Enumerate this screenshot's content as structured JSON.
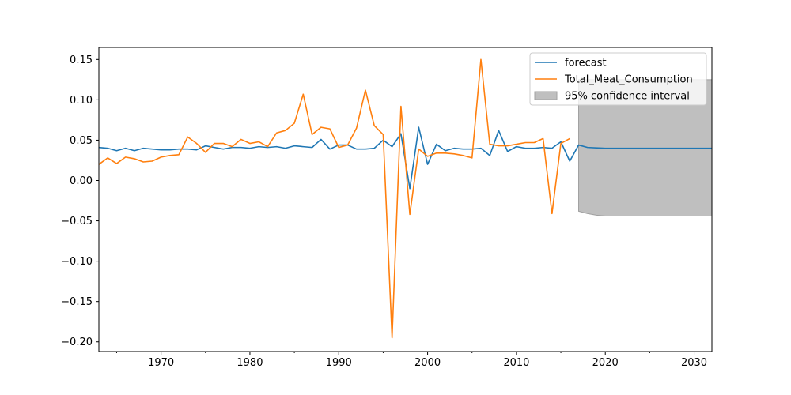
{
  "chart_data": {
    "type": "line",
    "title": "",
    "xlabel": "",
    "ylabel": "",
    "xlim": [
      1963,
      2032
    ],
    "ylim": [
      -0.212,
      0.165
    ],
    "grid": false,
    "legend_position": "top-right",
    "x_ticks": [
      1970,
      1980,
      1990,
      2000,
      2010,
      2020,
      2030
    ],
    "x_tick_labels": [
      "1970",
      "1980",
      "1990",
      "2000",
      "2010",
      "2020",
      "2030"
    ],
    "x_minor_ticks": [
      1965,
      1975,
      1985,
      1995,
      2005,
      2015,
      2025
    ],
    "y_ticks": [
      0.15,
      0.1,
      0.05,
      0.0,
      -0.05,
      -0.1,
      -0.15,
      -0.2
    ],
    "y_tick_labels": [
      "0.15",
      "0.10",
      "0.05",
      "0.00",
      "−0.05",
      "−0.10",
      "−0.15",
      "−0.20"
    ],
    "series": [
      {
        "name": "forecast",
        "color": "#1f77b4",
        "x": [
          1963,
          1964,
          1965,
          1966,
          1967,
          1968,
          1969,
          1970,
          1971,
          1972,
          1973,
          1974,
          1975,
          1976,
          1977,
          1978,
          1979,
          1980,
          1981,
          1982,
          1983,
          1984,
          1985,
          1986,
          1987,
          1988,
          1989,
          1990,
          1991,
          1992,
          1993,
          1994,
          1995,
          1996,
          1997,
          1998,
          1999,
          2000,
          2001,
          2002,
          2003,
          2004,
          2005,
          2006,
          2007,
          2008,
          2009,
          2010,
          2011,
          2012,
          2013,
          2014,
          2015,
          2016,
          2017,
          2018,
          2019,
          2020,
          2021,
          2022,
          2023,
          2024,
          2025,
          2026,
          2027,
          2028,
          2029,
          2030,
          2031,
          2032
        ],
        "values": [
          0.041,
          0.04,
          0.037,
          0.04,
          0.037,
          0.04,
          0.039,
          0.038,
          0.038,
          0.039,
          0.039,
          0.038,
          0.043,
          0.041,
          0.039,
          0.041,
          0.041,
          0.04,
          0.042,
          0.041,
          0.042,
          0.04,
          0.043,
          0.042,
          0.041,
          0.051,
          0.039,
          0.044,
          0.044,
          0.039,
          0.039,
          0.04,
          0.05,
          0.042,
          0.058,
          -0.01,
          0.066,
          0.02,
          0.045,
          0.037,
          0.04,
          0.039,
          0.039,
          0.04,
          0.031,
          0.062,
          0.036,
          0.042,
          0.04,
          0.04,
          0.041,
          0.04,
          0.048,
          0.024,
          0.044,
          0.041,
          0.0405,
          0.04,
          0.04,
          0.04,
          0.04,
          0.04,
          0.04,
          0.04,
          0.04,
          0.04,
          0.04,
          0.04,
          0.04,
          0.04
        ]
      },
      {
        "name": "Total_Meat_Consumption",
        "color": "#ff7f0e",
        "x": [
          1963,
          1964,
          1965,
          1966,
          1967,
          1968,
          1969,
          1970,
          1971,
          1972,
          1973,
          1974,
          1975,
          1976,
          1977,
          1978,
          1979,
          1980,
          1981,
          1982,
          1983,
          1984,
          1985,
          1986,
          1987,
          1988,
          1989,
          1990,
          1991,
          1992,
          1993,
          1994,
          1995,
          1996,
          1997,
          1998,
          1999,
          2000,
          2001,
          2002,
          2003,
          2004,
          2005,
          2006,
          2007,
          2008,
          2009,
          2010,
          2011,
          2012,
          2013,
          2014,
          2015,
          2016
        ],
        "values": [
          0.02,
          0.028,
          0.021,
          0.029,
          0.027,
          0.023,
          0.024,
          0.029,
          0.031,
          0.032,
          0.054,
          0.046,
          0.035,
          0.046,
          0.046,
          0.042,
          0.051,
          0.046,
          0.048,
          0.042,
          0.059,
          0.062,
          0.071,
          0.107,
          0.057,
          0.066,
          0.064,
          0.041,
          0.044,
          0.065,
          0.112,
          0.068,
          0.057,
          -0.195,
          0.092,
          -0.042,
          0.039,
          0.03,
          0.034,
          0.034,
          0.033,
          0.031,
          0.028,
          0.15,
          0.045,
          0.043,
          0.043,
          0.045,
          0.047,
          0.047,
          0.052,
          -0.041,
          0.046,
          0.052
        ]
      }
    ],
    "confidence_interval": {
      "name": "95% confidence interval",
      "color": "#bfbfbf",
      "x": [
        2017,
        2018,
        2019,
        2020,
        2021,
        2022,
        2023,
        2024,
        2025,
        2026,
        2027,
        2028,
        2029,
        2030,
        2031,
        2032
      ],
      "upper": [
        0.125,
        0.125,
        0.125,
        0.125,
        0.125,
        0.125,
        0.125,
        0.125,
        0.125,
        0.125,
        0.125,
        0.125,
        0.125,
        0.125,
        0.125,
        0.125
      ],
      "lower": [
        -0.038,
        -0.041,
        -0.043,
        -0.044,
        -0.044,
        -0.044,
        -0.044,
        -0.044,
        -0.044,
        -0.044,
        -0.044,
        -0.044,
        -0.044,
        -0.044,
        -0.044,
        -0.044
      ]
    },
    "legend": [
      {
        "label": "forecast",
        "kind": "line",
        "color": "#1f77b4"
      },
      {
        "label": "Total_Meat_Consumption",
        "kind": "line",
        "color": "#ff7f0e"
      },
      {
        "label": "95% confidence interval",
        "kind": "patch",
        "color": "#bfbfbf"
      }
    ]
  }
}
